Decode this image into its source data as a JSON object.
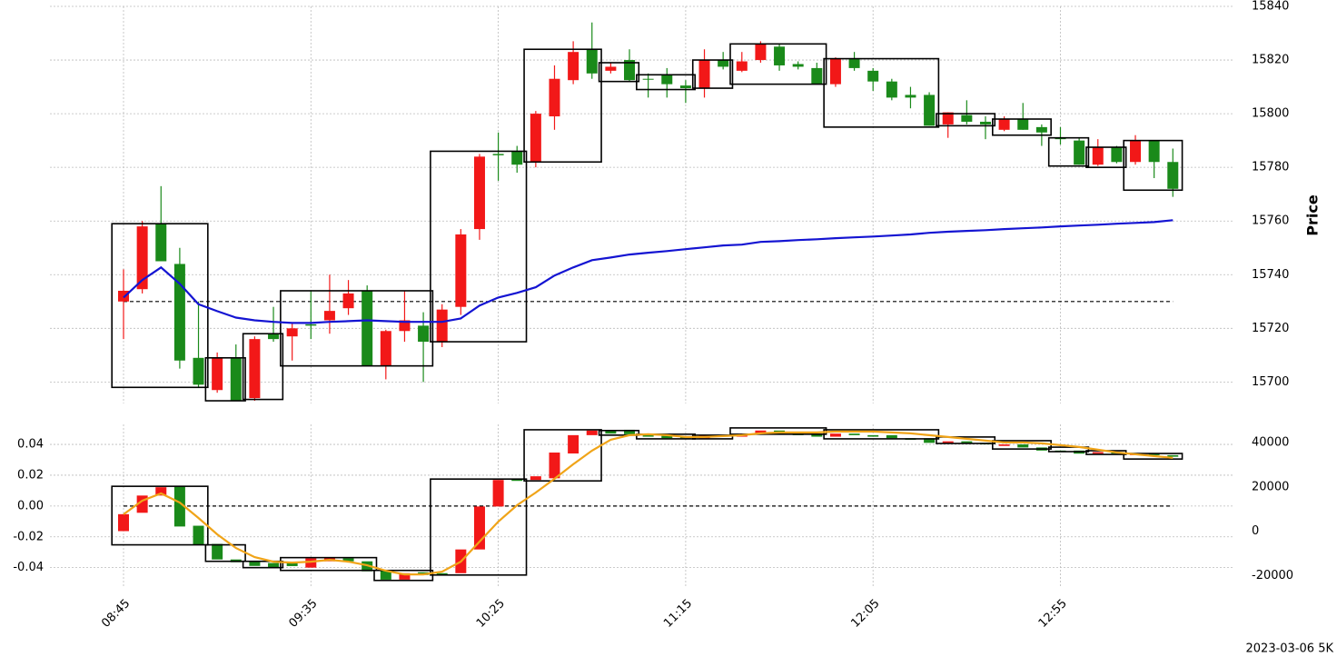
{
  "footer": "2023-03-06 5K",
  "chart_data": [
    {
      "type": "candlestick",
      "ylabel": "Price",
      "yaxis_side": "right",
      "grid": true,
      "up_color": "#f21818",
      "down_color": "#1a8a1a",
      "box_color": "#000000",
      "ylim": [
        15692,
        15840
      ],
      "yticks": [
        15700,
        15720,
        15740,
        15760,
        15780,
        15800,
        15820,
        15840
      ],
      "hline": 15730,
      "open": [
        15730,
        15734.6,
        15759,
        15744,
        15709,
        15697,
        15709,
        15694,
        15718,
        15717,
        15721.5,
        15723,
        15727.5,
        15734,
        15706,
        15719,
        15721,
        15715,
        15728,
        15757,
        15785,
        15786,
        15782,
        15799,
        15812.5,
        15824,
        15816,
        15820,
        15813,
        15814.5,
        15810.5,
        15809.5,
        15820,
        15816,
        15820,
        15825,
        15818.5,
        15817,
        15811,
        15820.5,
        15816,
        15812,
        15807,
        15807,
        15796,
        15799.5,
        15797,
        15794,
        15798,
        15795,
        15791,
        15790,
        15781,
        15787.5,
        15782,
        15790,
        15782
      ],
      "high": [
        15742,
        15760,
        15773,
        15750,
        15730,
        15711,
        15714,
        15717,
        15728,
        15722,
        15734,
        15740,
        15738,
        15736,
        15719.5,
        15734,
        15726,
        15729,
        15757,
        15785,
        15793,
        15788,
        15801,
        15818,
        15827,
        15834,
        15819,
        15824,
        15815,
        15817,
        15812.5,
        15824,
        15823,
        15823,
        15827,
        15826,
        15819.5,
        15819,
        15821,
        15823,
        15817,
        15813,
        15810,
        15808,
        15800.5,
        15805,
        15799,
        15799,
        15804,
        15796,
        15795,
        15791,
        15790.5,
        15788,
        15792,
        15790,
        15787
      ],
      "low": [
        15716,
        15733,
        15745,
        15705,
        15698,
        15696,
        15693,
        15693,
        15715,
        15708,
        15716,
        15718,
        15725,
        15706,
        15701,
        15715,
        15700,
        15713,
        15725,
        15753,
        15775,
        15778,
        15780,
        15794,
        15811,
        15813,
        15815,
        15812,
        15806,
        15806,
        15804,
        15806,
        15816.5,
        15815.5,
        15819,
        15816,
        15816.5,
        15811,
        15810,
        15816,
        15808.5,
        15805,
        15802,
        15795.5,
        15791,
        15796,
        15790.5,
        15793.5,
        15794,
        15788,
        15788.5,
        15781,
        15780.5,
        15781.5,
        15781,
        15776,
        15769
      ],
      "close": [
        15734,
        15758,
        15745,
        15708,
        15699,
        15709,
        15693,
        15716,
        15716,
        15720,
        15721,
        15726.5,
        15733,
        15706,
        15719,
        15723,
        15715,
        15727,
        15755,
        15784,
        15784.5,
        15781,
        15800,
        15813,
        15823,
        15815,
        15817.5,
        15812.5,
        15813,
        15811,
        15809.5,
        15820,
        15817.5,
        15819.5,
        15826,
        15818,
        15817.5,
        15811,
        15820.5,
        15817,
        15812,
        15806,
        15806,
        15795.5,
        15800.5,
        15797,
        15796,
        15798,
        15794,
        15793,
        15790.5,
        15781,
        15787.5,
        15782,
        15790,
        15782,
        15772
      ],
      "boxes": [
        {
          "start": 0,
          "end": 4,
          "top": 15759,
          "bottom": 15698
        },
        {
          "start": 5,
          "end": 6,
          "top": 15709,
          "bottom": 15693
        },
        {
          "start": 7,
          "end": 8,
          "top": 15718,
          "bottom": 15693.5
        },
        {
          "start": 9,
          "end": 16,
          "top": 15734,
          "bottom": 15706
        },
        {
          "start": 17,
          "end": 21,
          "top": 15786,
          "bottom": 15715
        },
        {
          "start": 22,
          "end": 25,
          "top": 15824,
          "bottom": 15782
        },
        {
          "start": 26,
          "end": 27,
          "top": 15819,
          "bottom": 15812
        },
        {
          "start": 28,
          "end": 30,
          "top": 15814.5,
          "bottom": 15809
        },
        {
          "start": 31,
          "end": 32,
          "top": 15820,
          "bottom": 15809.5
        },
        {
          "start": 33,
          "end": 37,
          "top": 15826,
          "bottom": 15811
        },
        {
          "start": 38,
          "end": 43,
          "top": 15820.5,
          "bottom": 15795
        },
        {
          "start": 44,
          "end": 46,
          "top": 15800,
          "bottom": 15795.5
        },
        {
          "start": 47,
          "end": 49,
          "top": 15798,
          "bottom": 15792
        },
        {
          "start": 50,
          "end": 51,
          "top": 15791,
          "bottom": 15780.5
        },
        {
          "start": 52,
          "end": 53,
          "top": 15787.5,
          "bottom": 15780
        },
        {
          "start": 54,
          "end": 56,
          "top": 15790,
          "bottom": 15771.5
        }
      ],
      "series": [
        {
          "color": "#1414d2",
          "values": [
            15731.5,
            15738,
            15742.7,
            15736.6,
            15729,
            15726.4,
            15724,
            15723,
            15722.4,
            15722,
            15722,
            15722.4,
            15722.7,
            15723,
            15722.7,
            15722.4,
            15722.4,
            15722.4,
            15723.7,
            15728.5,
            15731.5,
            15733.2,
            15735.3,
            15739.7,
            15742.7,
            15745.4,
            15746.4,
            15747.5,
            15748.2,
            15748.8,
            15749.5,
            15750.2,
            15750.9,
            15751.2,
            15752.2,
            15752.5,
            15752.9,
            15753.2,
            15753.6,
            15753.9,
            15754.2,
            15754.6,
            15755,
            15755.6,
            15756,
            15756.3,
            15756.6,
            15757,
            15757.3,
            15757.6,
            15758,
            15758.3,
            15758.6,
            15759,
            15759.3,
            15759.6,
            15760.3
          ]
        }
      ]
    },
    {
      "type": "candlestick",
      "yaxis_side": "left",
      "grid": true,
      "up_color": "#f21818",
      "down_color": "#1a8a1a",
      "box_color": "#000000",
      "categories": [
        "08:45",
        null,
        null,
        null,
        null,
        null,
        null,
        null,
        null,
        null,
        "09:35",
        null,
        null,
        null,
        null,
        null,
        null,
        null,
        null,
        null,
        "10:25",
        null,
        null,
        null,
        null,
        null,
        null,
        null,
        null,
        null,
        "11:15",
        null,
        null,
        null,
        null,
        null,
        null,
        null,
        null,
        null,
        "12:05",
        null,
        null,
        null,
        null,
        null,
        null,
        null,
        null,
        null,
        "12:55",
        null,
        null,
        null,
        null,
        null,
        null
      ],
      "ylim": [
        -0.052,
        0.053
      ],
      "yticks": [
        -0.04,
        -0.02,
        {
          "value": 0,
          "label": "0.00"
        },
        0.02,
        0.04
      ],
      "y2lim": [
        -24800,
        48200
      ],
      "y2ticks": [
        -20000,
        0,
        20000,
        40000
      ],
      "hline": 0,
      "open": [
        -0.0163,
        -0.0044,
        0.0068,
        0.0128,
        -0.0128,
        -0.0246,
        -0.0347,
        -0.0359,
        -0.037,
        -0.037,
        -0.04,
        -0.0359,
        -0.034,
        -0.0359,
        -0.0418,
        -0.0478,
        -0.043,
        -0.0436,
        -0.0436,
        -0.0282,
        -0.0003,
        0.0175,
        0.0169,
        0.018,
        0.0341,
        0.046,
        0.049,
        0.0495,
        0.047,
        0.046,
        0.045,
        0.044,
        0.046,
        0.045,
        0.047,
        0.049,
        0.047,
        0.047,
        0.045,
        0.047,
        0.046,
        0.046,
        0.044,
        0.044,
        0.041,
        0.042,
        0.041,
        0.039,
        0.04,
        0.038,
        0.036,
        0.036,
        0.034,
        0.035,
        0.033,
        0.034,
        0.033
      ],
      "close": [
        -0.0053,
        0.0068,
        0.0122,
        -0.0133,
        -0.0252,
        -0.0347,
        -0.0365,
        -0.0389,
        -0.04,
        -0.039,
        -0.034,
        -0.0335,
        -0.0359,
        -0.0424,
        -0.0478,
        -0.0436,
        -0.0448,
        -0.0448,
        -0.0282,
        -0.0003,
        0.0169,
        0.0163,
        0.0193,
        0.0347,
        0.046,
        0.049,
        0.047,
        0.0466,
        0.045,
        0.044,
        0.044,
        0.046,
        0.045,
        0.047,
        0.049,
        0.047,
        0.046,
        0.045,
        0.047,
        0.046,
        0.045,
        0.044,
        0.043,
        0.041,
        0.042,
        0.041,
        0.04,
        0.04,
        0.038,
        0.036,
        0.035,
        0.034,
        0.035,
        0.034,
        0.034,
        0.033,
        0.032
      ],
      "boxes": [
        {
          "start": 0,
          "end": 4,
          "top": 0.0128,
          "bottom": -0.0252
        },
        {
          "start": 5,
          "end": 6,
          "top": -0.0252,
          "bottom": -0.0359
        },
        {
          "start": 7,
          "end": 8,
          "top": -0.0359,
          "bottom": -0.04
        },
        {
          "start": 9,
          "end": 13,
          "top": -0.0335,
          "bottom": -0.0418
        },
        {
          "start": 14,
          "end": 16,
          "top": -0.0418,
          "bottom": -0.0483
        },
        {
          "start": 17,
          "end": 21,
          "top": 0.0175,
          "bottom": -0.0448
        },
        {
          "start": 22,
          "end": 25,
          "top": 0.0495,
          "bottom": 0.0163
        },
        {
          "start": 26,
          "end": 27,
          "top": 0.049,
          "bottom": 0.046
        },
        {
          "start": 28,
          "end": 30,
          "top": 0.0466,
          "bottom": 0.0436
        },
        {
          "start": 31,
          "end": 32,
          "top": 0.046,
          "bottom": 0.0436
        },
        {
          "start": 33,
          "end": 37,
          "top": 0.0507,
          "bottom": 0.0466
        },
        {
          "start": 38,
          "end": 43,
          "top": 0.0495,
          "bottom": 0.0436
        },
        {
          "start": 44,
          "end": 46,
          "top": 0.0448,
          "bottom": 0.0406
        },
        {
          "start": 47,
          "end": 49,
          "top": 0.0424,
          "bottom": 0.037
        },
        {
          "start": 50,
          "end": 51,
          "top": 0.0382,
          "bottom": 0.0353
        },
        {
          "start": 52,
          "end": 53,
          "top": 0.0359,
          "bottom": 0.0335
        },
        {
          "start": 54,
          "end": 56,
          "top": 0.0341,
          "bottom": 0.0305
        }
      ],
      "series": [
        {
          "color": "#f0a418",
          "axis": "y2",
          "values": [
            7600,
            13760,
            17040,
            12940,
            5960,
            -1440,
            -7600,
            -11700,
            -13760,
            -14170,
            -13760,
            -12940,
            -13760,
            -15400,
            -17870,
            -19510,
            -19510,
            -18280,
            -13760,
            -4720,
            4310,
            11700,
            17450,
            23620,
            30190,
            36350,
            41280,
            43330,
            43740,
            43330,
            42510,
            42510,
            42920,
            43330,
            44150,
            44560,
            44560,
            44560,
            44970,
            44970,
            44970,
            44560,
            44150,
            43330,
            42510,
            41690,
            40870,
            40050,
            40050,
            39640,
            38820,
            38000,
            36760,
            35530,
            34710,
            33890,
            33070
          ]
        }
      ]
    }
  ]
}
